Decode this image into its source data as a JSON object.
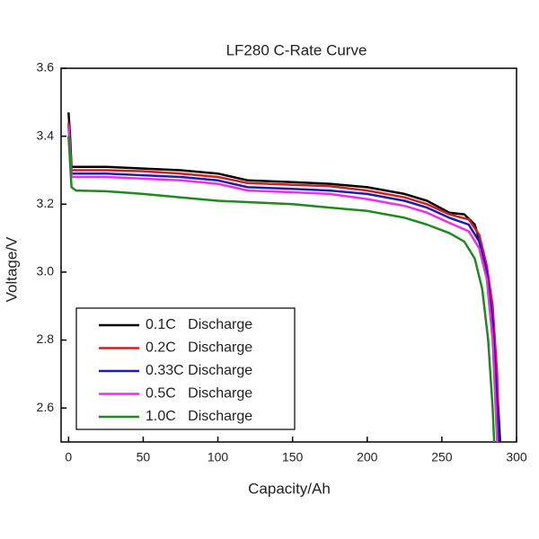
{
  "chart_data": {
    "type": "line",
    "title": "LF280 C-Rate Curve",
    "x_label": "Capacity/Ah",
    "y_label": "Voltage/V",
    "xlim": [
      -5,
      300
    ],
    "xticks": [
      0,
      50,
      100,
      150,
      200,
      250,
      300
    ],
    "ylim": [
      2.5,
      3.6
    ],
    "yticks": [
      2.6,
      2.8,
      {
        "value": 3,
        "label": "3.0"
      },
      3.2,
      3.4,
      3.6
    ],
    "legend": "lower-left",
    "series": [
      {
        "name": "0.1C   Discharge",
        "color": "#000000",
        "x": [
          0,
          1,
          2,
          25,
          50,
          75,
          100,
          120,
          150,
          175,
          200,
          225,
          240,
          255,
          265,
          272,
          278,
          282,
          286,
          289
        ],
        "values": [
          3.47,
          3.4,
          3.31,
          3.31,
          3.305,
          3.3,
          3.29,
          3.27,
          3.265,
          3.26,
          3.25,
          3.23,
          3.21,
          3.175,
          3.17,
          3.14,
          3.05,
          2.95,
          2.75,
          2.5
        ]
      },
      {
        "name": "0.2C   Discharge",
        "color": "#d0201c",
        "x": [
          0,
          2,
          25,
          50,
          75,
          100,
          120,
          150,
          175,
          200,
          225,
          240,
          255,
          268,
          275,
          280,
          284,
          287,
          288
        ],
        "values": [
          3.44,
          3.3,
          3.3,
          3.297,
          3.29,
          3.28,
          3.262,
          3.257,
          3.253,
          3.24,
          3.22,
          3.2,
          3.17,
          3.155,
          3.11,
          3.02,
          2.9,
          2.7,
          2.5
        ]
      },
      {
        "name": "0.33C Discharge",
        "color": "#1c1cb4",
        "x": [
          0,
          2,
          25,
          50,
          75,
          100,
          120,
          150,
          175,
          200,
          225,
          240,
          255,
          268,
          275,
          280,
          284,
          287,
          288
        ],
        "values": [
          3.43,
          3.29,
          3.29,
          3.285,
          3.28,
          3.27,
          3.25,
          3.245,
          3.24,
          3.23,
          3.21,
          3.19,
          3.16,
          3.14,
          3.09,
          3.0,
          2.85,
          2.6,
          2.5
        ]
      },
      {
        "name": "0.5C   Discharge",
        "color": "#ee2cee",
        "x": [
          0,
          2,
          25,
          50,
          75,
          100,
          120,
          150,
          175,
          200,
          225,
          240,
          255,
          268,
          275,
          280,
          284,
          286,
          287
        ],
        "values": [
          3.43,
          3.28,
          3.28,
          3.275,
          3.27,
          3.26,
          3.24,
          3.235,
          3.23,
          3.215,
          3.195,
          3.175,
          3.145,
          3.12,
          3.07,
          2.98,
          2.8,
          2.6,
          2.5
        ]
      },
      {
        "name": "1.0C   Discharge",
        "color": "#1e8a1e",
        "x": [
          0,
          2,
          5,
          25,
          50,
          75,
          100,
          125,
          150,
          175,
          200,
          225,
          240,
          255,
          265,
          272,
          277,
          281,
          284,
          285
        ],
        "values": [
          3.4,
          3.25,
          3.24,
          3.238,
          3.23,
          3.22,
          3.21,
          3.205,
          3.2,
          3.19,
          3.18,
          3.16,
          3.14,
          3.115,
          3.09,
          3.04,
          2.95,
          2.8,
          2.6,
          2.5
        ]
      }
    ]
  }
}
